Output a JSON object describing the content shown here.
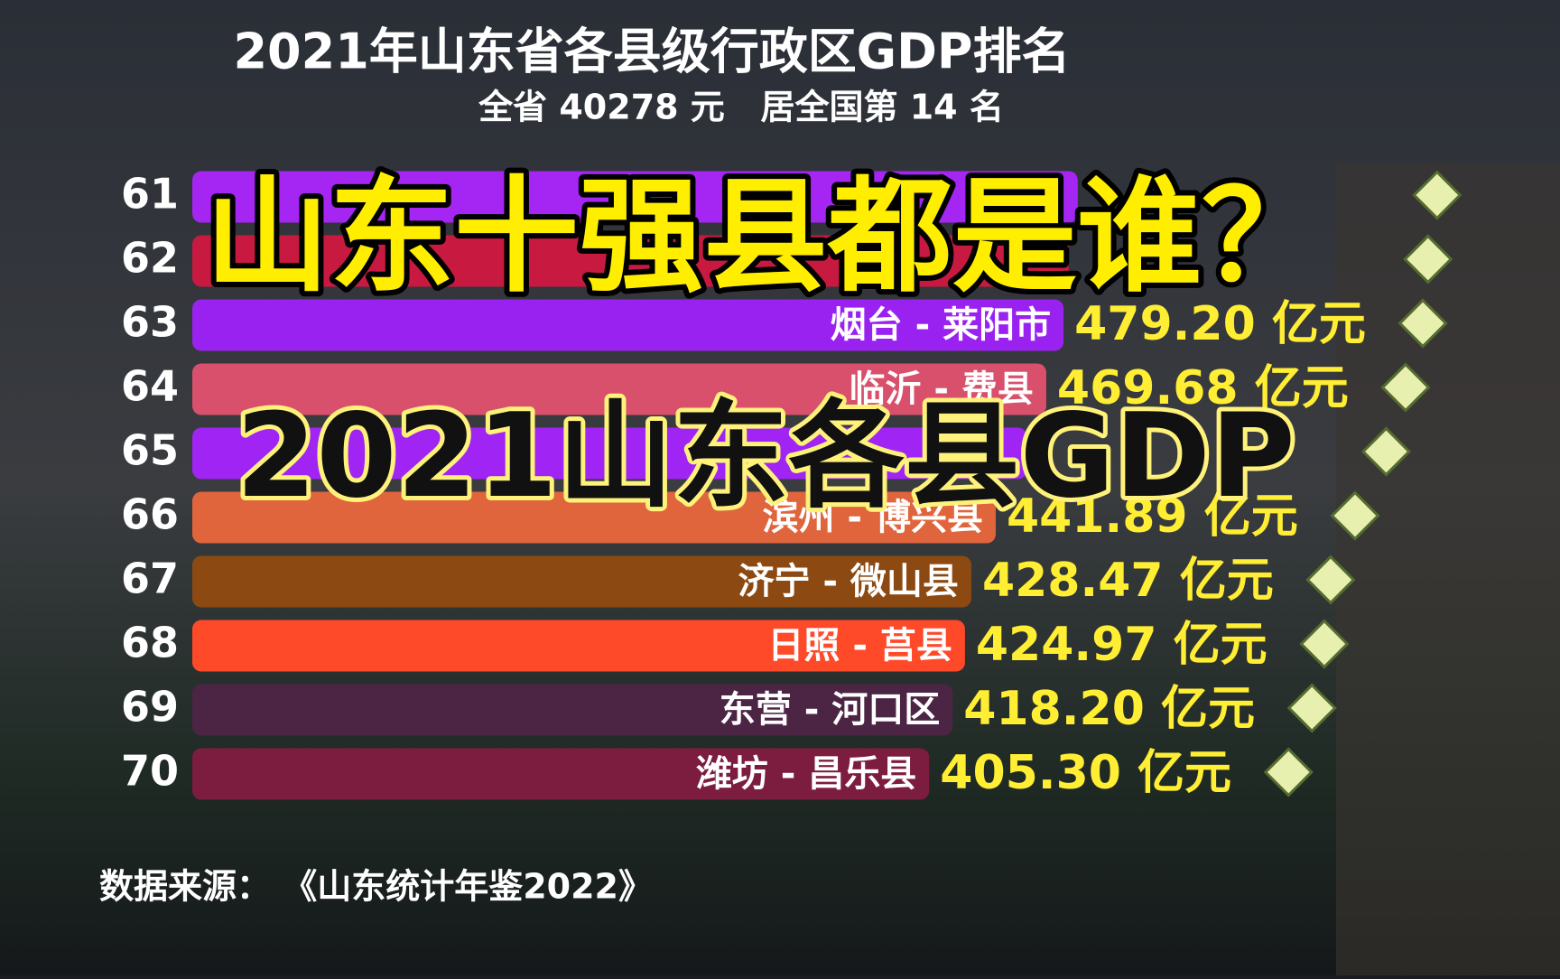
{
  "chart_data": {
    "type": "bar",
    "orientation": "horizontal",
    "title": "2021年山东省各县级行政区GDP排名",
    "subtitle": "全省 40278 元   居全国第 14 名",
    "source": "数据来源： 《山东统计年鉴2022》",
    "annotations": [
      "山东十强县都是谁？",
      "2021山东各县GDP"
    ],
    "ranks": [
      61,
      62,
      63,
      64,
      65,
      66,
      67,
      68,
      69,
      70
    ],
    "categories": [
      null,
      null,
      "烟台 - 莱阳市",
      "临沂 - 费县",
      null,
      "滨州 - 博兴县",
      "济宁 - 微山县",
      "日照 - 莒县",
      "东营 - 河口区",
      "潍坊 - 昌乐县"
    ],
    "values": [
      487,
      482,
      479.2,
      469.68,
      459,
      441.89,
      428.47,
      424.97,
      418.2,
      405.3
    ],
    "value_labels": [
      null,
      null,
      "479.20 亿元",
      "469.68 亿元",
      null,
      "441.89 亿元",
      "428.47 亿元",
      "424.97 亿元",
      "418.20 亿元",
      "405.30 亿元"
    ],
    "colors": [
      "#a526f2",
      "#c81a40",
      "#9a22f0",
      "#d8506c",
      "#a024f4",
      "#e0643c",
      "#8c4a12",
      "#ff4a2a",
      "#4c2444",
      "#7c1c3e"
    ]
  }
}
